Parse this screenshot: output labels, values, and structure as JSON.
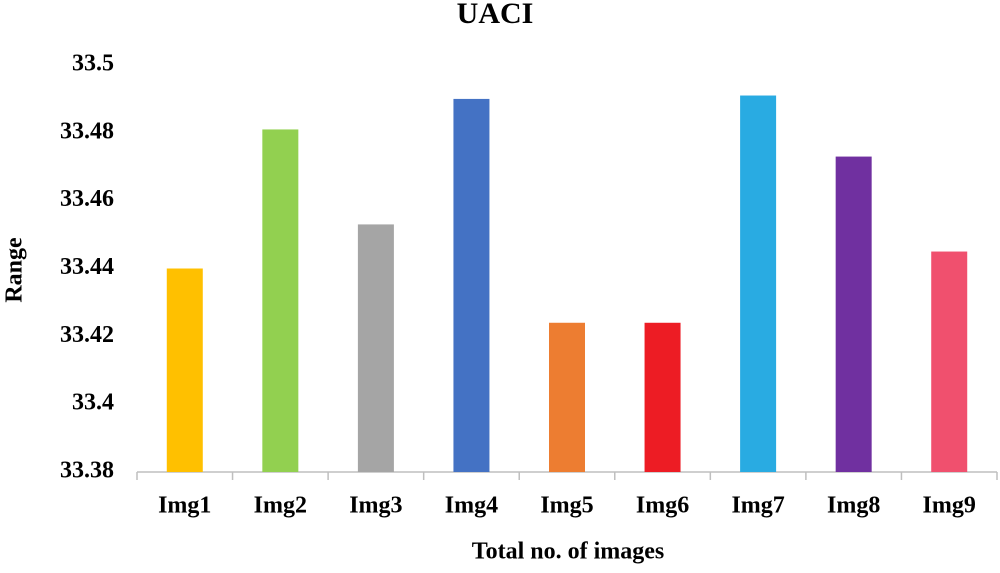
{
  "chart_data": {
    "type": "bar",
    "title": "UACI",
    "x_label": "Total no. of images",
    "y_label": "Range",
    "categories": [
      "Img1",
      "Img2",
      "Img3",
      "Img4",
      "Img5",
      "Img6",
      "Img7",
      "Img8",
      "Img9"
    ],
    "values": [
      33.44,
      33.481,
      33.453,
      33.49,
      33.424,
      33.424,
      33.491,
      33.473,
      33.445
    ],
    "colors": [
      "#ffc000",
      "#92d050",
      "#a5a5a5",
      "#4472c4",
      "#ed7d31",
      "#ed1c24",
      "#29abe2",
      "#7030a0",
      "#f0506e"
    ],
    "ylim": [
      33.38,
      33.5
    ],
    "yticks": [
      33.38,
      33.4,
      33.42,
      33.44,
      33.46,
      33.48,
      33.5
    ],
    "grid": false
  }
}
